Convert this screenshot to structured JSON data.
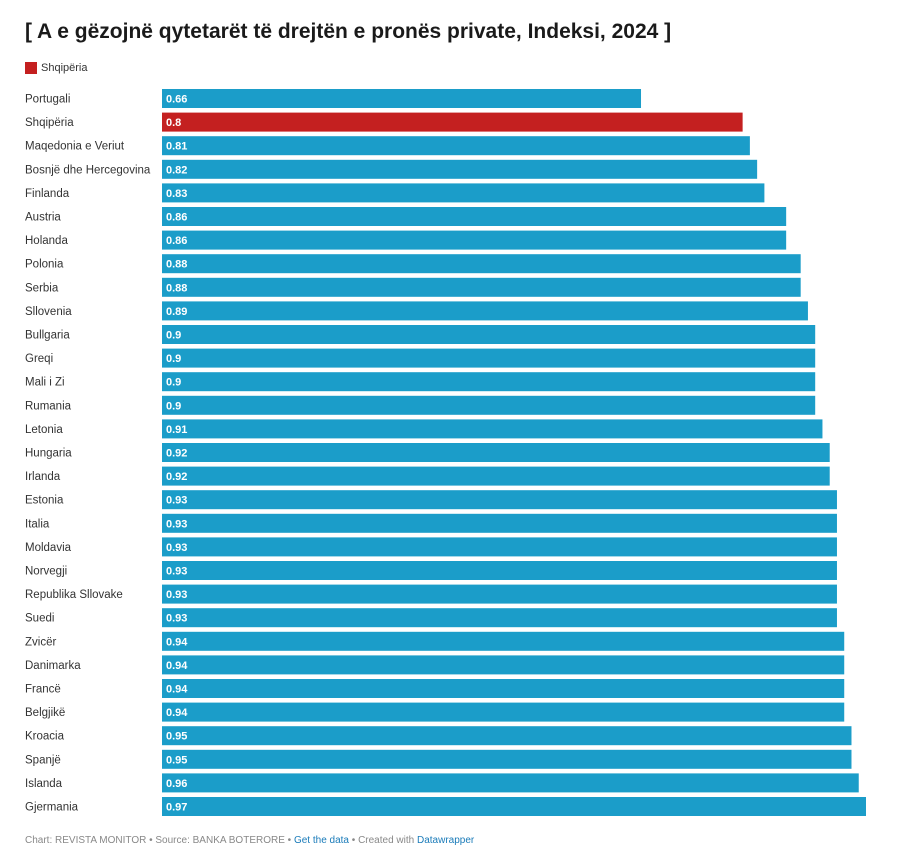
{
  "colors": {
    "default_bar": "#1b9dc9",
    "highlight_bar": "#c42020"
  },
  "legend": {
    "label": "Shqipëria",
    "color": "#c42020"
  },
  "chart_data": {
    "type": "bar",
    "orientation": "horizontal",
    "title": "[ A e gëzojnë qytetarët të drejtën e pronës private, Indeksi, 2024 ]",
    "highlight": "Shqipëria",
    "categories": [
      "Portugali",
      "Shqipëria",
      "Maqedonia e Veriut",
      "Bosnjë dhe Hercegovina",
      "Finlanda",
      "Austria",
      "Holanda",
      "Polonia",
      "Serbia",
      "Sllovenia",
      "Bullgaria",
      "Greqi",
      "Mali i Zi",
      "Rumania",
      "Letonia",
      "Hungaria",
      "Irlanda",
      "Estonia",
      "Italia",
      "Moldavia",
      "Norvegji",
      "Republika Sllovake",
      "Suedi",
      "Zvicër",
      "Danimarka",
      "Francë",
      "Belgjikë",
      "Kroacia",
      "Spanjë",
      "Islanda",
      "Gjermania"
    ],
    "values": [
      0.66,
      0.8,
      0.81,
      0.82,
      0.83,
      0.86,
      0.86,
      0.88,
      0.88,
      0.89,
      0.9,
      0.9,
      0.9,
      0.9,
      0.91,
      0.92,
      0.92,
      0.93,
      0.93,
      0.93,
      0.93,
      0.93,
      0.93,
      0.94,
      0.94,
      0.94,
      0.94,
      0.95,
      0.95,
      0.96,
      0.97
    ],
    "value_labels": [
      "0.66",
      "0.8",
      "0.81",
      "0.82",
      "0.83",
      "0.86",
      "0.86",
      "0.88",
      "0.88",
      "0.89",
      "0.9",
      "0.9",
      "0.9",
      "0.9",
      "0.91",
      "0.92",
      "0.92",
      "0.93",
      "0.93",
      "0.93",
      "0.93",
      "0.93",
      "0.93",
      "0.94",
      "0.94",
      "0.94",
      "0.94",
      "0.95",
      "0.95",
      "0.96",
      "0.97"
    ],
    "xlim": [
      0,
      0.97
    ]
  },
  "footer": {
    "chart_credit": "Chart: REVISTA MONITOR",
    "sep1": " • ",
    "source": "Source: BANKA BOTERORE",
    "sep2": " • ",
    "get_data": "Get the data",
    "sep3": " • ",
    "created_with": "Created with ",
    "datawrapper": "Datawrapper"
  }
}
